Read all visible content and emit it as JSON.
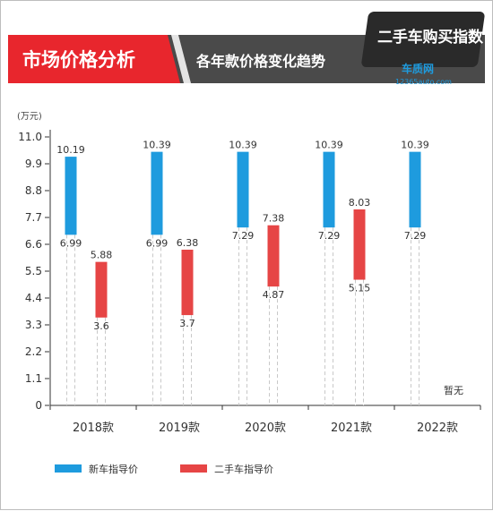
{
  "header": {
    "section_title": "市场价格分析",
    "subtitle": "各年款价格变化趋势",
    "logo_text": "二手车购买指数",
    "logo_brand": "车质网",
    "logo_url": "12365auto.com"
  },
  "colors": {
    "new_price": "#1e9bde",
    "used_price": "#e64545",
    "banner_red": "#e8262d",
    "banner_dark": "#3d3d3d"
  },
  "chart_data": {
    "type": "bar",
    "subtype": "floating-range",
    "unit_label": "(万元)",
    "ylim": [
      0,
      11.0
    ],
    "yticks": [
      "0",
      "1.1",
      "2.2",
      "3.3",
      "4.4",
      "5.5",
      "6.6",
      "7.7",
      "8.8",
      "9.9",
      "11.0"
    ],
    "categories": [
      "2018款",
      "2019款",
      "2020款",
      "2021款",
      "2022款"
    ],
    "series": [
      {
        "name": "新车指导价",
        "color": "#1e9bde",
        "low": [
          6.99,
          6.99,
          7.29,
          7.29,
          7.29
        ],
        "high": [
          10.19,
          10.39,
          10.39,
          10.39,
          10.39
        ],
        "low_labels": [
          "6.99",
          "6.99",
          "7.29",
          "7.29",
          "7.29"
        ],
        "high_labels": [
          "10.19",
          "10.39",
          "10.39",
          "10.39",
          "10.39"
        ]
      },
      {
        "name": "二手车指导价",
        "color": "#e64545",
        "low": [
          3.6,
          3.7,
          4.87,
          5.15,
          null
        ],
        "high": [
          5.88,
          6.38,
          7.38,
          8.03,
          null
        ],
        "low_labels": [
          "3.6",
          "3.7",
          "4.87",
          "5.15",
          null
        ],
        "high_labels": [
          "5.88",
          "6.38",
          "7.38",
          "8.03",
          null
        ]
      }
    ],
    "annotations": [
      {
        "category_index": 4,
        "text": "暂无"
      }
    ],
    "legend_position": "bottom-left"
  }
}
